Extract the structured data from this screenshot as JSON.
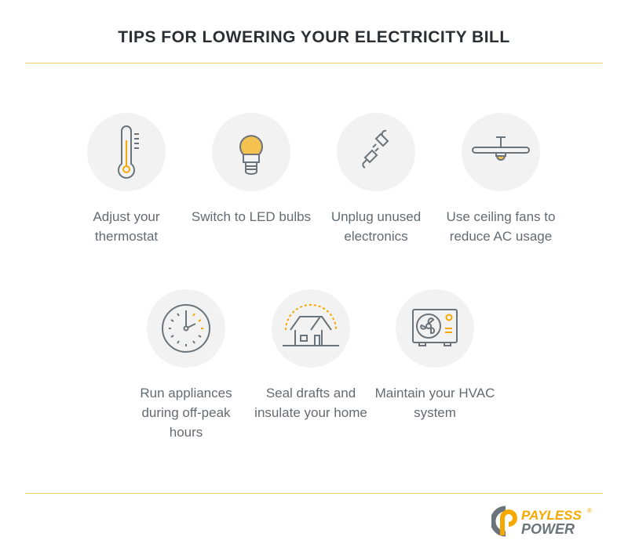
{
  "title": "TIPS FOR LOWERING YOUR ELECTRICITY BILL",
  "tips": [
    {
      "icon": "thermometer-icon",
      "label": "Adjust your thermostat"
    },
    {
      "icon": "led-bulb-icon",
      "label": "Switch to LED bulbs"
    },
    {
      "icon": "plug-icon",
      "label": "Unplug unused electronics"
    },
    {
      "icon": "ceiling-fan-icon",
      "label": "Use ceiling fans to reduce AC usage"
    },
    {
      "icon": "clock-icon",
      "label": "Run appliances during off-peak hours"
    },
    {
      "icon": "house-icon",
      "label": "Seal drafts and insulate your home"
    },
    {
      "icon": "hvac-unit-icon",
      "label": "Maintain your HVAC system"
    }
  ],
  "logo": {
    "line1": "PAYLESS",
    "line2": "POWER",
    "mark": "®"
  },
  "colors": {
    "accent": "#f5a800",
    "icon_stroke": "#6b747a",
    "circle": "#f2f2f2",
    "rule": "#f0cf72"
  }
}
